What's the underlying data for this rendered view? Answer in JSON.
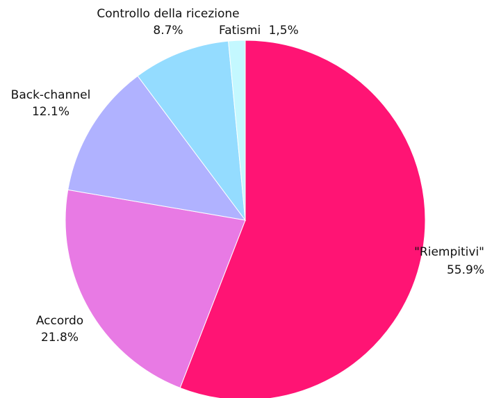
{
  "chart_data": {
    "type": "pie",
    "title": "",
    "start_angle": "12 o'clock, clockwise",
    "slices": [
      {
        "label": "\"Riempitivi\"",
        "value": 55.9,
        "value_label": "55.9%",
        "color": "#ff1474"
      },
      {
        "label": "Accordo",
        "value": 21.8,
        "value_label": "21.8%",
        "color": "#e87ae4"
      },
      {
        "label": "Back-channel",
        "value": 12.1,
        "value_label": "12.1%",
        "color": "#b0b2ff"
      },
      {
        "label": "Controllo della ricezione",
        "value": 8.7,
        "value_label": "8.7%",
        "color": "#94dcff"
      },
      {
        "label": "Fatismi",
        "value": 1.5,
        "value_label": "1,5%",
        "color": "#c4f8ff"
      }
    ]
  }
}
